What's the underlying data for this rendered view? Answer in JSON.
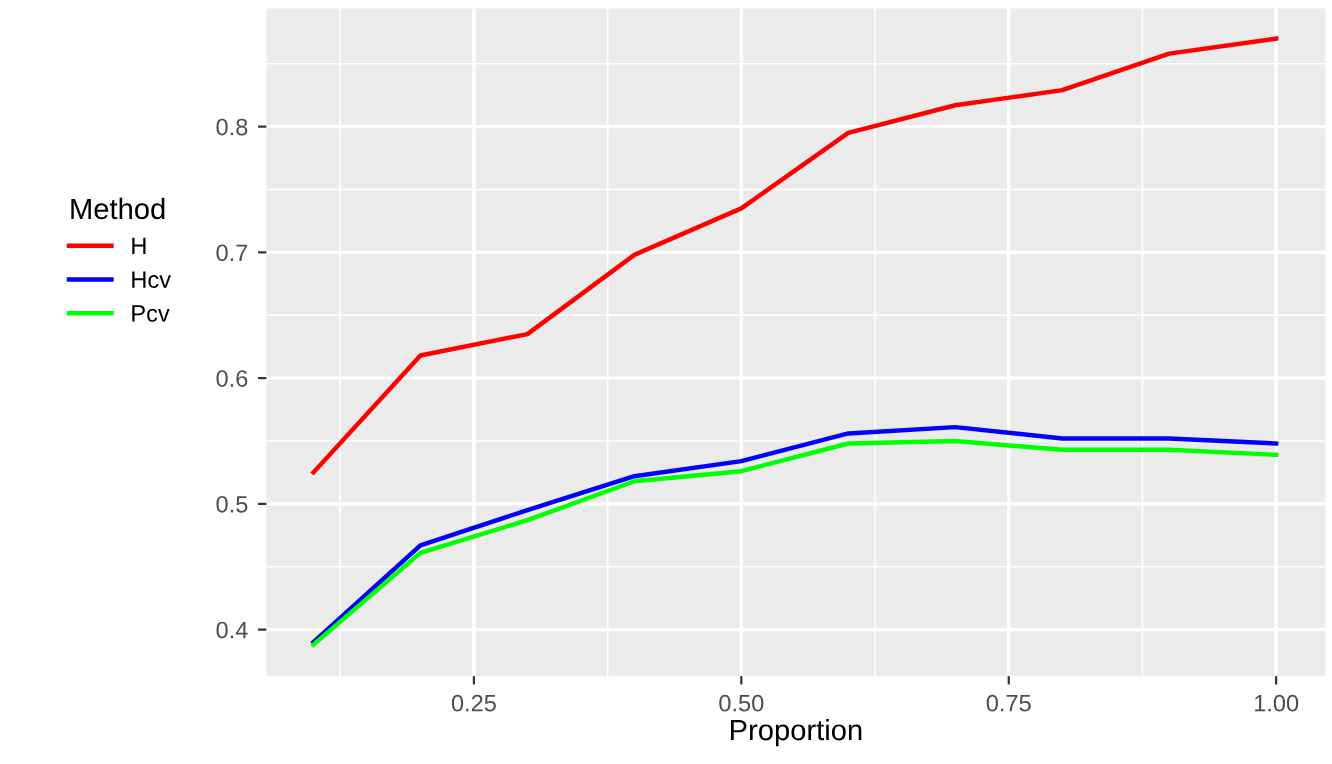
{
  "chart_data": {
    "type": "line",
    "xlabel": "Proportion",
    "legend_title": "Method",
    "legend": "left",
    "grid": true,
    "x": [
      0.1,
      0.2,
      0.3,
      0.4,
      0.5,
      0.6,
      0.7,
      0.8,
      0.9,
      1.0
    ],
    "series": [
      {
        "name": "H",
        "color": "#ff0000",
        "values": [
          0.525,
          0.618,
          0.635,
          0.698,
          0.735,
          0.795,
          0.817,
          0.829,
          0.858,
          0.87
        ]
      },
      {
        "name": "Hcv",
        "color": "#0000ff",
        "values": [
          0.39,
          0.467,
          0.495,
          0.522,
          0.534,
          0.556,
          0.561,
          0.552,
          0.552,
          0.548
        ]
      },
      {
        "name": "Pcv",
        "color": "#00ff00",
        "values": [
          0.388,
          0.461,
          0.487,
          0.518,
          0.526,
          0.548,
          0.55,
          0.543,
          0.543,
          0.539
        ]
      }
    ],
    "xlim": [
      0.056,
      1.046
    ],
    "ylim": [
      0.363,
      0.894
    ],
    "xticks": [
      {
        "value": 0.25,
        "label": "0.25"
      },
      {
        "value": 0.5,
        "label": "0.50"
      },
      {
        "value": 0.75,
        "label": "0.75"
      },
      {
        "value": 1.0,
        "label": "1.00"
      }
    ],
    "yticks": [
      0.4,
      0.5,
      0.6,
      0.7,
      0.8
    ]
  }
}
